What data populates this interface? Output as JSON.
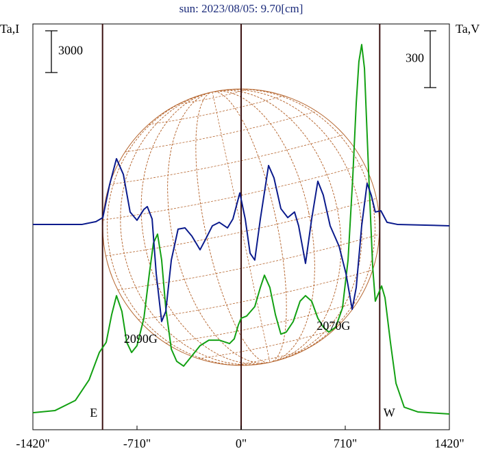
{
  "chart_data": {
    "type": "line",
    "title": "sun: 2023/08/05: 9.70[cm]",
    "xlim": [
      -1420,
      1420
    ],
    "xticks": [
      {
        "value": -1420,
        "label": "-1420\""
      },
      {
        "value": -710,
        "label": "-710\""
      },
      {
        "value": 0,
        "label": "0\""
      },
      {
        "value": 710,
        "label": "710\""
      },
      {
        "value": 1420,
        "label": "1420\""
      }
    ],
    "ylim": [
      -14750,
      14400
    ],
    "y2lim": [
      -90,
      2053
    ],
    "scale_bar_y": {
      "value": 3000,
      "label": "3000"
    },
    "scale_bar_y2": {
      "value": 300,
      "label": "300"
    },
    "limb_lines": [
      -945,
      0,
      945
    ],
    "limb_labels": [
      {
        "x": -945,
        "label": "E"
      },
      {
        "x": 945,
        "label": "W"
      }
    ],
    "annotations": [
      {
        "x": -685,
        "label": "2090G"
      },
      {
        "x": 630,
        "label": "2070G"
      }
    ],
    "series": [
      {
        "name": "Ta,I",
        "color": "#0a1a8c",
        "axis": "y",
        "x": [
          -1420,
          -1084,
          -990,
          -943,
          -897,
          -850,
          -803,
          -757,
          -710,
          -663,
          -640,
          -607,
          -579,
          -542,
          -514,
          -476,
          -430,
          -383,
          -336,
          -280,
          -243,
          -196,
          -149,
          -93,
          -56,
          -9,
          28,
          61,
          93,
          131,
          187,
          224,
          271,
          318,
          364,
          392,
          439,
          481,
          523,
          560,
          607,
          668,
          715,
          757,
          785,
          822,
          859,
          887,
          915,
          953,
          995,
          1065,
          1420
        ],
        "values": [
          0,
          0,
          200,
          490,
          2850,
          4720,
          3590,
          890,
          300,
          1080,
          1280,
          390,
          -3540,
          -6980,
          -6250,
          -2560,
          -340,
          -250,
          -840,
          -1820,
          -1080,
          -100,
          150,
          -250,
          390,
          2260,
          390,
          -2070,
          -2560,
          390,
          4230,
          3340,
          1130,
          490,
          890,
          -100,
          -2800,
          390,
          3100,
          2110,
          -100,
          -1570,
          -3540,
          -6100,
          -4520,
          -100,
          2950,
          2110,
          890,
          980,
          150,
          0,
          -100
        ]
      },
      {
        "name": "Ta,V",
        "color": "#12a012",
        "axis": "y2",
        "x": [
          -1420,
          -1270,
          -1130,
          -1037,
          -967,
          -920,
          -883,
          -850,
          -813,
          -780,
          -747,
          -710,
          -663,
          -626,
          -598,
          -570,
          -542,
          -514,
          -476,
          -439,
          -392,
          -336,
          -280,
          -220,
          -149,
          -79,
          -47,
          -19,
          0,
          37,
          93,
          131,
          159,
          196,
          234,
          271,
          308,
          355,
          402,
          439,
          481,
          523,
          560,
          598,
          645,
          691,
          729,
          761,
          785,
          803,
          822,
          841,
          869,
          897,
          915,
          934,
          958,
          981,
          1018,
          1056,
          1112,
          1205,
          1420
        ],
        "values": [
          0,
          11,
          65,
          173,
          318,
          372,
          517,
          618,
          535,
          372,
          318,
          354,
          499,
          734,
          896,
          943,
          806,
          553,
          336,
          271,
          246,
          300,
          354,
          383,
          383,
          365,
          390,
          463,
          499,
          510,
          560,
          661,
          726,
          661,
          517,
          415,
          426,
          481,
          589,
          618,
          589,
          499,
          452,
          426,
          452,
          553,
          806,
          1240,
          1637,
          1854,
          1944,
          1818,
          1276,
          770,
          589,
          625,
          669,
          607,
          372,
          155,
          29,
          4,
          -7
        ]
      }
    ]
  }
}
